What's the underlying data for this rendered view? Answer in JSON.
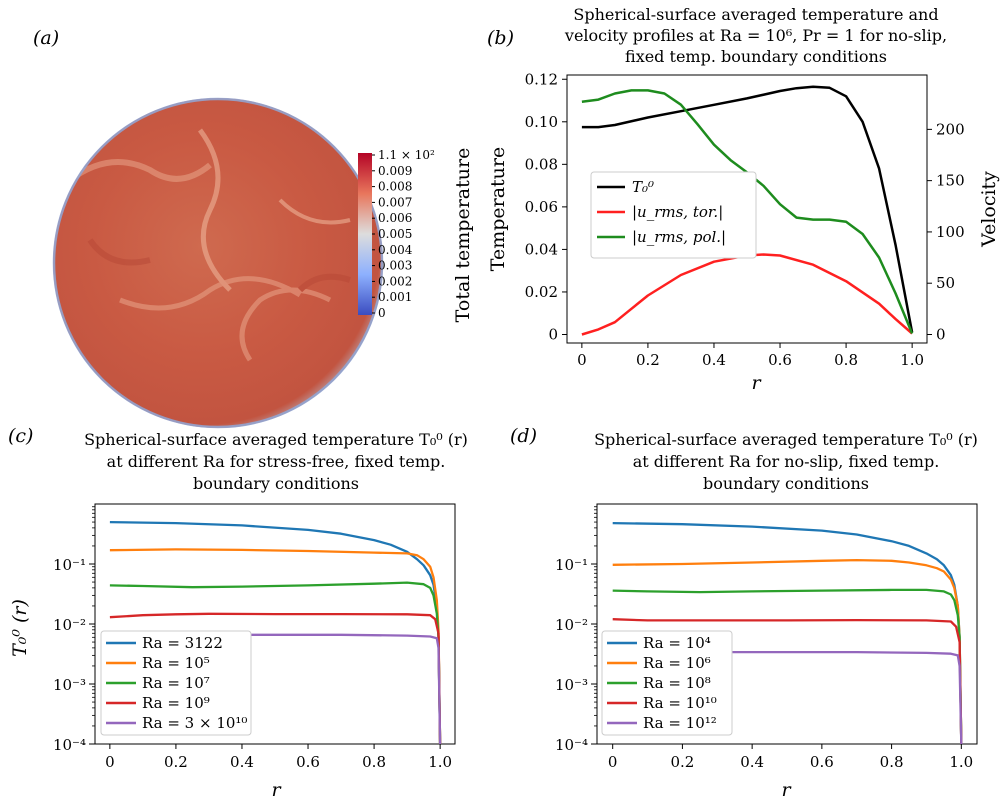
{
  "panel_labels": [
    "(a)",
    "(b)",
    "(c)",
    "(d)"
  ],
  "chart_data": [
    {
      "panel": "(a)",
      "type": "heatmap",
      "title": "",
      "colorbar_label": "Total temperature",
      "colorbar_ticks": [
        "1.1 × 10²",
        "0.009",
        "0.008",
        "0.007",
        "0.006",
        "0.005",
        "0.004",
        "0.003",
        "0.002",
        "0.001",
        "0"
      ],
      "colors": {
        "high": "#b40426",
        "mid": "#dddddd",
        "low": "#3b4cc0"
      }
    },
    {
      "panel": "(b)",
      "type": "line",
      "title": "Spherical-surface averaged temperature and velocity profiles at Ra = 10⁶, Pr = 1 for no-slip, fixed temp. boundary conditions",
      "title_lines": [
        "Spherical-surface averaged temperature and",
        "velocity profiles at Ra = 10⁶, Pr = 1 for no-slip,",
        "fixed temp. boundary conditions"
      ],
      "xlabel": "r",
      "ylabel": "Temperature",
      "y2label": "Velocity",
      "xlim": [
        0,
        1
      ],
      "ylim": [
        -0.004,
        0.122
      ],
      "y2lim": [
        -8.3,
        253
      ],
      "xticks": [
        0,
        0.2,
        0.4,
        0.6,
        0.8,
        1.0
      ],
      "xticklabels": [
        "0",
        "0.2",
        "0.4",
        "0.6",
        "0.8",
        "1.0"
      ],
      "yticks": [
        0,
        0.02,
        0.04,
        0.06,
        0.08,
        0.1,
        0.12
      ],
      "yticklabels": [
        "0",
        "0.02",
        "0.04",
        "0.06",
        "0.08",
        "0.10",
        "0.12"
      ],
      "y2ticks": [
        0,
        50,
        100,
        150,
        200
      ],
      "y2ticklabels": [
        "0",
        "50",
        "100",
        "150",
        "200"
      ],
      "legend_position": "center-left",
      "series": [
        {
          "name": "T₀⁰",
          "color": "#000000",
          "axis": "left",
          "x": [
            0,
            0.05,
            0.1,
            0.2,
            0.3,
            0.4,
            0.5,
            0.6,
            0.65,
            0.7,
            0.75,
            0.8,
            0.85,
            0.9,
            0.95,
            1.0
          ],
          "y": [
            0.0975,
            0.0975,
            0.0985,
            0.102,
            0.105,
            0.108,
            0.111,
            0.1145,
            0.1158,
            0.1165,
            0.116,
            0.112,
            0.1,
            0.078,
            0.042,
            0.001
          ]
        },
        {
          "name": "|u_rms, tor.|",
          "color": "#ff2020",
          "axis": "right",
          "x": [
            0,
            0.05,
            0.1,
            0.15,
            0.2,
            0.3,
            0.4,
            0.5,
            0.55,
            0.6,
            0.7,
            0.8,
            0.9,
            0.95,
            1.0
          ],
          "y": [
            0,
            5,
            12,
            25,
            38,
            58,
            71,
            77,
            78,
            77,
            68,
            52,
            30,
            15,
            1
          ]
        },
        {
          "name": "|u_rms, pol.|",
          "color": "#1e8c1e",
          "axis": "right",
          "x": [
            0,
            0.05,
            0.1,
            0.15,
            0.2,
            0.25,
            0.3,
            0.35,
            0.4,
            0.45,
            0.5,
            0.55,
            0.6,
            0.65,
            0.7,
            0.75,
            0.8,
            0.85,
            0.9,
            0.95,
            1.0
          ],
          "y": [
            227,
            229,
            235,
            238,
            238,
            235,
            224,
            205,
            185,
            170,
            158,
            145,
            127,
            114,
            112,
            112,
            110,
            98,
            75,
            40,
            1
          ]
        }
      ]
    },
    {
      "panel": "(c)",
      "type": "line",
      "title": "Spherical-surface averaged temperature T₀⁰ (r) at different Ra for stress-free, fixed temp. boundary conditions",
      "title_lines": [
        "Spherical-surface averaged temperature T₀⁰ (r)",
        "at different Ra for stress-free, fixed temp.",
        "boundary conditions"
      ],
      "xlabel": "r",
      "ylabel": "T₀⁰ (r)",
      "yscale": "log",
      "xlim": [
        -0.045,
        1.045
      ],
      "ylim": [
        0.0001,
        1
      ],
      "xticks": [
        0,
        0.2,
        0.4,
        0.6,
        0.8,
        1.0
      ],
      "xticklabels": [
        "0",
        "0.2",
        "0.4",
        "0.6",
        "0.8",
        "1.0"
      ],
      "yticks": [
        0.0001,
        0.001,
        0.01,
        0.1
      ],
      "yticklabels": [
        "10⁻⁴",
        "10⁻³",
        "10⁻²",
        "10⁻¹"
      ],
      "legend_position": "lower-left",
      "series": [
        {
          "name": "Ra = 3122",
          "color": "#1f77b4",
          "x": [
            0,
            0.2,
            0.4,
            0.6,
            0.7,
            0.8,
            0.85,
            0.9,
            0.93,
            0.95,
            0.97,
            0.98,
            0.99,
            0.995,
            1.0
          ],
          "y": [
            0.5,
            0.48,
            0.44,
            0.37,
            0.32,
            0.25,
            0.21,
            0.16,
            0.12,
            0.095,
            0.065,
            0.045,
            0.02,
            0.006,
            0.0001
          ]
        },
        {
          "name": "Ra = 10⁵",
          "color": "#ff7f0e",
          "x": [
            0,
            0.2,
            0.4,
            0.6,
            0.8,
            0.9,
            0.93,
            0.95,
            0.97,
            0.98,
            0.99,
            0.995,
            1.0
          ],
          "y": [
            0.17,
            0.175,
            0.172,
            0.165,
            0.155,
            0.15,
            0.14,
            0.12,
            0.09,
            0.06,
            0.025,
            0.008,
            0.0001
          ]
        },
        {
          "name": "Ra = 10⁷",
          "color": "#2ca02c",
          "x": [
            0,
            0.1,
            0.25,
            0.4,
            0.6,
            0.8,
            0.9,
            0.95,
            0.97,
            0.98,
            0.99,
            0.995,
            1.0
          ],
          "y": [
            0.044,
            0.043,
            0.041,
            0.042,
            0.044,
            0.047,
            0.049,
            0.046,
            0.04,
            0.03,
            0.015,
            0.006,
            0.0001
          ]
        },
        {
          "name": "Ra = 10⁹",
          "color": "#d62728",
          "x": [
            0,
            0.1,
            0.2,
            0.3,
            0.5,
            0.7,
            0.9,
            0.97,
            0.985,
            0.995,
            1.0
          ],
          "y": [
            0.013,
            0.014,
            0.0145,
            0.0148,
            0.0146,
            0.0146,
            0.0145,
            0.014,
            0.012,
            0.007,
            0.0001
          ]
        },
        {
          "name": "Ra = 3 × 10¹⁰",
          "color": "#9467bd",
          "x": [
            0,
            0.05,
            0.1,
            0.3,
            0.5,
            0.7,
            0.9,
            0.97,
            0.99,
            0.995,
            1.0
          ],
          "y": [
            0.0068,
            0.0066,
            0.0067,
            0.0066,
            0.0066,
            0.0066,
            0.0064,
            0.0062,
            0.0058,
            0.004,
            0.0001
          ]
        }
      ]
    },
    {
      "panel": "(d)",
      "type": "line",
      "title": "Spherical-surface averaged temperature T₀⁰ (r) at different Ra for no-slip, fixed temp. boundary conditions",
      "title_lines": [
        "Spherical-surface averaged temperature T₀⁰ (r)",
        "at different Ra for no-slip, fixed temp.",
        "boundary conditions"
      ],
      "xlabel": "r",
      "ylabel": "",
      "yscale": "log",
      "xlim": [
        -0.045,
        1.045
      ],
      "ylim": [
        0.0001,
        1
      ],
      "xticks": [
        0,
        0.2,
        0.4,
        0.6,
        0.8,
        1.0
      ],
      "xticklabels": [
        "0",
        "0.2",
        "0.4",
        "0.6",
        "0.8",
        "1.0"
      ],
      "yticks": [
        0.0001,
        0.001,
        0.01,
        0.1
      ],
      "yticklabels": [
        "10⁻⁴",
        "10⁻³",
        "10⁻²",
        "10⁻¹"
      ],
      "legend_position": "lower-left",
      "series": [
        {
          "name": "Ra = 10⁴",
          "color": "#1f77b4",
          "x": [
            0,
            0.2,
            0.4,
            0.6,
            0.7,
            0.8,
            0.85,
            0.9,
            0.93,
            0.95,
            0.97,
            0.98,
            0.99,
            0.995,
            1.0
          ],
          "y": [
            0.48,
            0.46,
            0.42,
            0.36,
            0.31,
            0.24,
            0.2,
            0.15,
            0.12,
            0.095,
            0.065,
            0.045,
            0.02,
            0.006,
            0.0001
          ]
        },
        {
          "name": "Ra = 10⁶",
          "color": "#ff7f0e",
          "x": [
            0,
            0.2,
            0.4,
            0.6,
            0.7,
            0.8,
            0.85,
            0.9,
            0.93,
            0.95,
            0.97,
            0.98,
            0.99,
            0.995,
            1.0
          ],
          "y": [
            0.097,
            0.1,
            0.106,
            0.113,
            0.116,
            0.113,
            0.106,
            0.095,
            0.085,
            0.075,
            0.055,
            0.04,
            0.02,
            0.006,
            0.0001
          ]
        },
        {
          "name": "Ra = 10⁸",
          "color": "#2ca02c",
          "x": [
            0,
            0.1,
            0.25,
            0.4,
            0.6,
            0.8,
            0.9,
            0.95,
            0.97,
            0.98,
            0.99,
            0.995,
            1.0
          ],
          "y": [
            0.036,
            0.035,
            0.034,
            0.035,
            0.036,
            0.037,
            0.037,
            0.035,
            0.031,
            0.025,
            0.014,
            0.006,
            0.0001
          ]
        },
        {
          "name": "Ra = 10¹⁰",
          "color": "#d62728",
          "x": [
            0,
            0.1,
            0.3,
            0.5,
            0.7,
            0.9,
            0.97,
            0.985,
            0.995,
            1.0
          ],
          "y": [
            0.012,
            0.0115,
            0.0115,
            0.0115,
            0.0116,
            0.0115,
            0.011,
            0.009,
            0.005,
            0.0001
          ]
        },
        {
          "name": "Ra = 10¹²",
          "color": "#9467bd",
          "x": [
            0,
            0.05,
            0.1,
            0.3,
            0.5,
            0.7,
            0.9,
            0.97,
            0.99,
            0.995,
            1.0
          ],
          "y": [
            0.0035,
            0.0035,
            0.0034,
            0.0034,
            0.0034,
            0.0034,
            0.0033,
            0.0032,
            0.003,
            0.002,
            0.0001
          ]
        }
      ]
    }
  ]
}
